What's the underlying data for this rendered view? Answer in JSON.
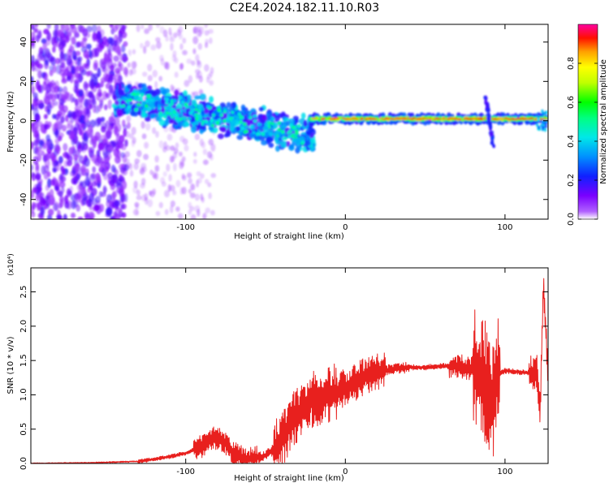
{
  "figure_title": "C2E4.2024.182.11.10.R03",
  "colors": {
    "snr_line": "#e8201e",
    "frame": "#000000",
    "background": "#ffffff"
  },
  "chart_data": [
    {
      "type": "heatmap",
      "title": "",
      "xlabel": "Height of straight line (km)",
      "ylabel": "Frequency (Hz)",
      "xlim": [
        -197,
        127
      ],
      "ylim": [
        -50,
        49
      ],
      "x_ticks": [
        -100,
        0,
        100
      ],
      "y_ticks": [
        -40,
        -20,
        0,
        20,
        40
      ],
      "grid": false,
      "colorbar": {
        "label": "Normalized spectral amplitude",
        "range": [
          0,
          1
        ],
        "ticks": [
          0.0,
          0.2,
          0.4,
          0.6,
          0.8
        ],
        "colormap": "rainbow (violet to red, magenta top)"
      },
      "features": [
        {
          "region": "x < -150",
          "frequency_range": [
            -50,
            49
          ],
          "amplitude": "low, scattered noise"
        },
        {
          "region": "-150 to -20",
          "description": "band descending from about +12 Hz to about -8 Hz",
          "amplitude": [
            0.2,
            0.5
          ]
        },
        {
          "region": "-20 to 127",
          "frequency": 1,
          "description": "narrow band",
          "amplitude": [
            0.6,
            1.0
          ]
        },
        {
          "region": "x ≈ 90",
          "description": "short spike from about +12 Hz to -15 Hz",
          "amplitude": 0.2
        }
      ]
    },
    {
      "type": "line",
      "title": "",
      "xlabel": "Height of straight line (km)",
      "ylabel": "SNR (10 * v/v)",
      "y_multiplier": "(x10⁴)",
      "xlim": [
        -197,
        127
      ],
      "ylim": [
        0,
        2.85
      ],
      "x_ticks": [
        -100,
        0,
        100
      ],
      "y_ticks": [
        0.0,
        0.5,
        1.0,
        1.5,
        2.0,
        2.5
      ],
      "grid": false,
      "series": [
        {
          "x": [
            -197,
            -160,
            -130,
            -120,
            -110,
            -100,
            -90,
            -85,
            -80,
            -75,
            -70,
            -65,
            -60,
            -55,
            -50,
            -45,
            -40,
            -35,
            -30,
            -25,
            -20,
            -15,
            -10,
            -5,
            0,
            5,
            10,
            15,
            20,
            25,
            30,
            35,
            40,
            45,
            50,
            55,
            60,
            65,
            70,
            75,
            80,
            85,
            88,
            90,
            92,
            95,
            100,
            105,
            110,
            115,
            120,
            122,
            124,
            127
          ],
          "y": [
            0.0,
            0.01,
            0.03,
            0.06,
            0.1,
            0.15,
            0.25,
            0.35,
            0.38,
            0.3,
            0.15,
            0.08,
            0.06,
            0.08,
            0.12,
            0.2,
            0.35,
            0.55,
            0.7,
            0.85,
            0.95,
            0.98,
            1.0,
            1.05,
            1.1,
            1.15,
            1.25,
            1.3,
            1.32,
            1.35,
            1.38,
            1.39,
            1.4,
            1.4,
            1.4,
            1.41,
            1.42,
            1.42,
            1.42,
            1.4,
            1.38,
            1.3,
            1.2,
            1.0,
            0.9,
            1.3,
            1.35,
            1.34,
            1.33,
            1.32,
            1.33,
            0.7,
            2.6,
            1.3
          ],
          "noise_band": "amplitude fluctuations of roughly ±0.4 between x = -40 and 0 and up to ±1.0 near x = 85 to 95"
        }
      ]
    }
  ]
}
